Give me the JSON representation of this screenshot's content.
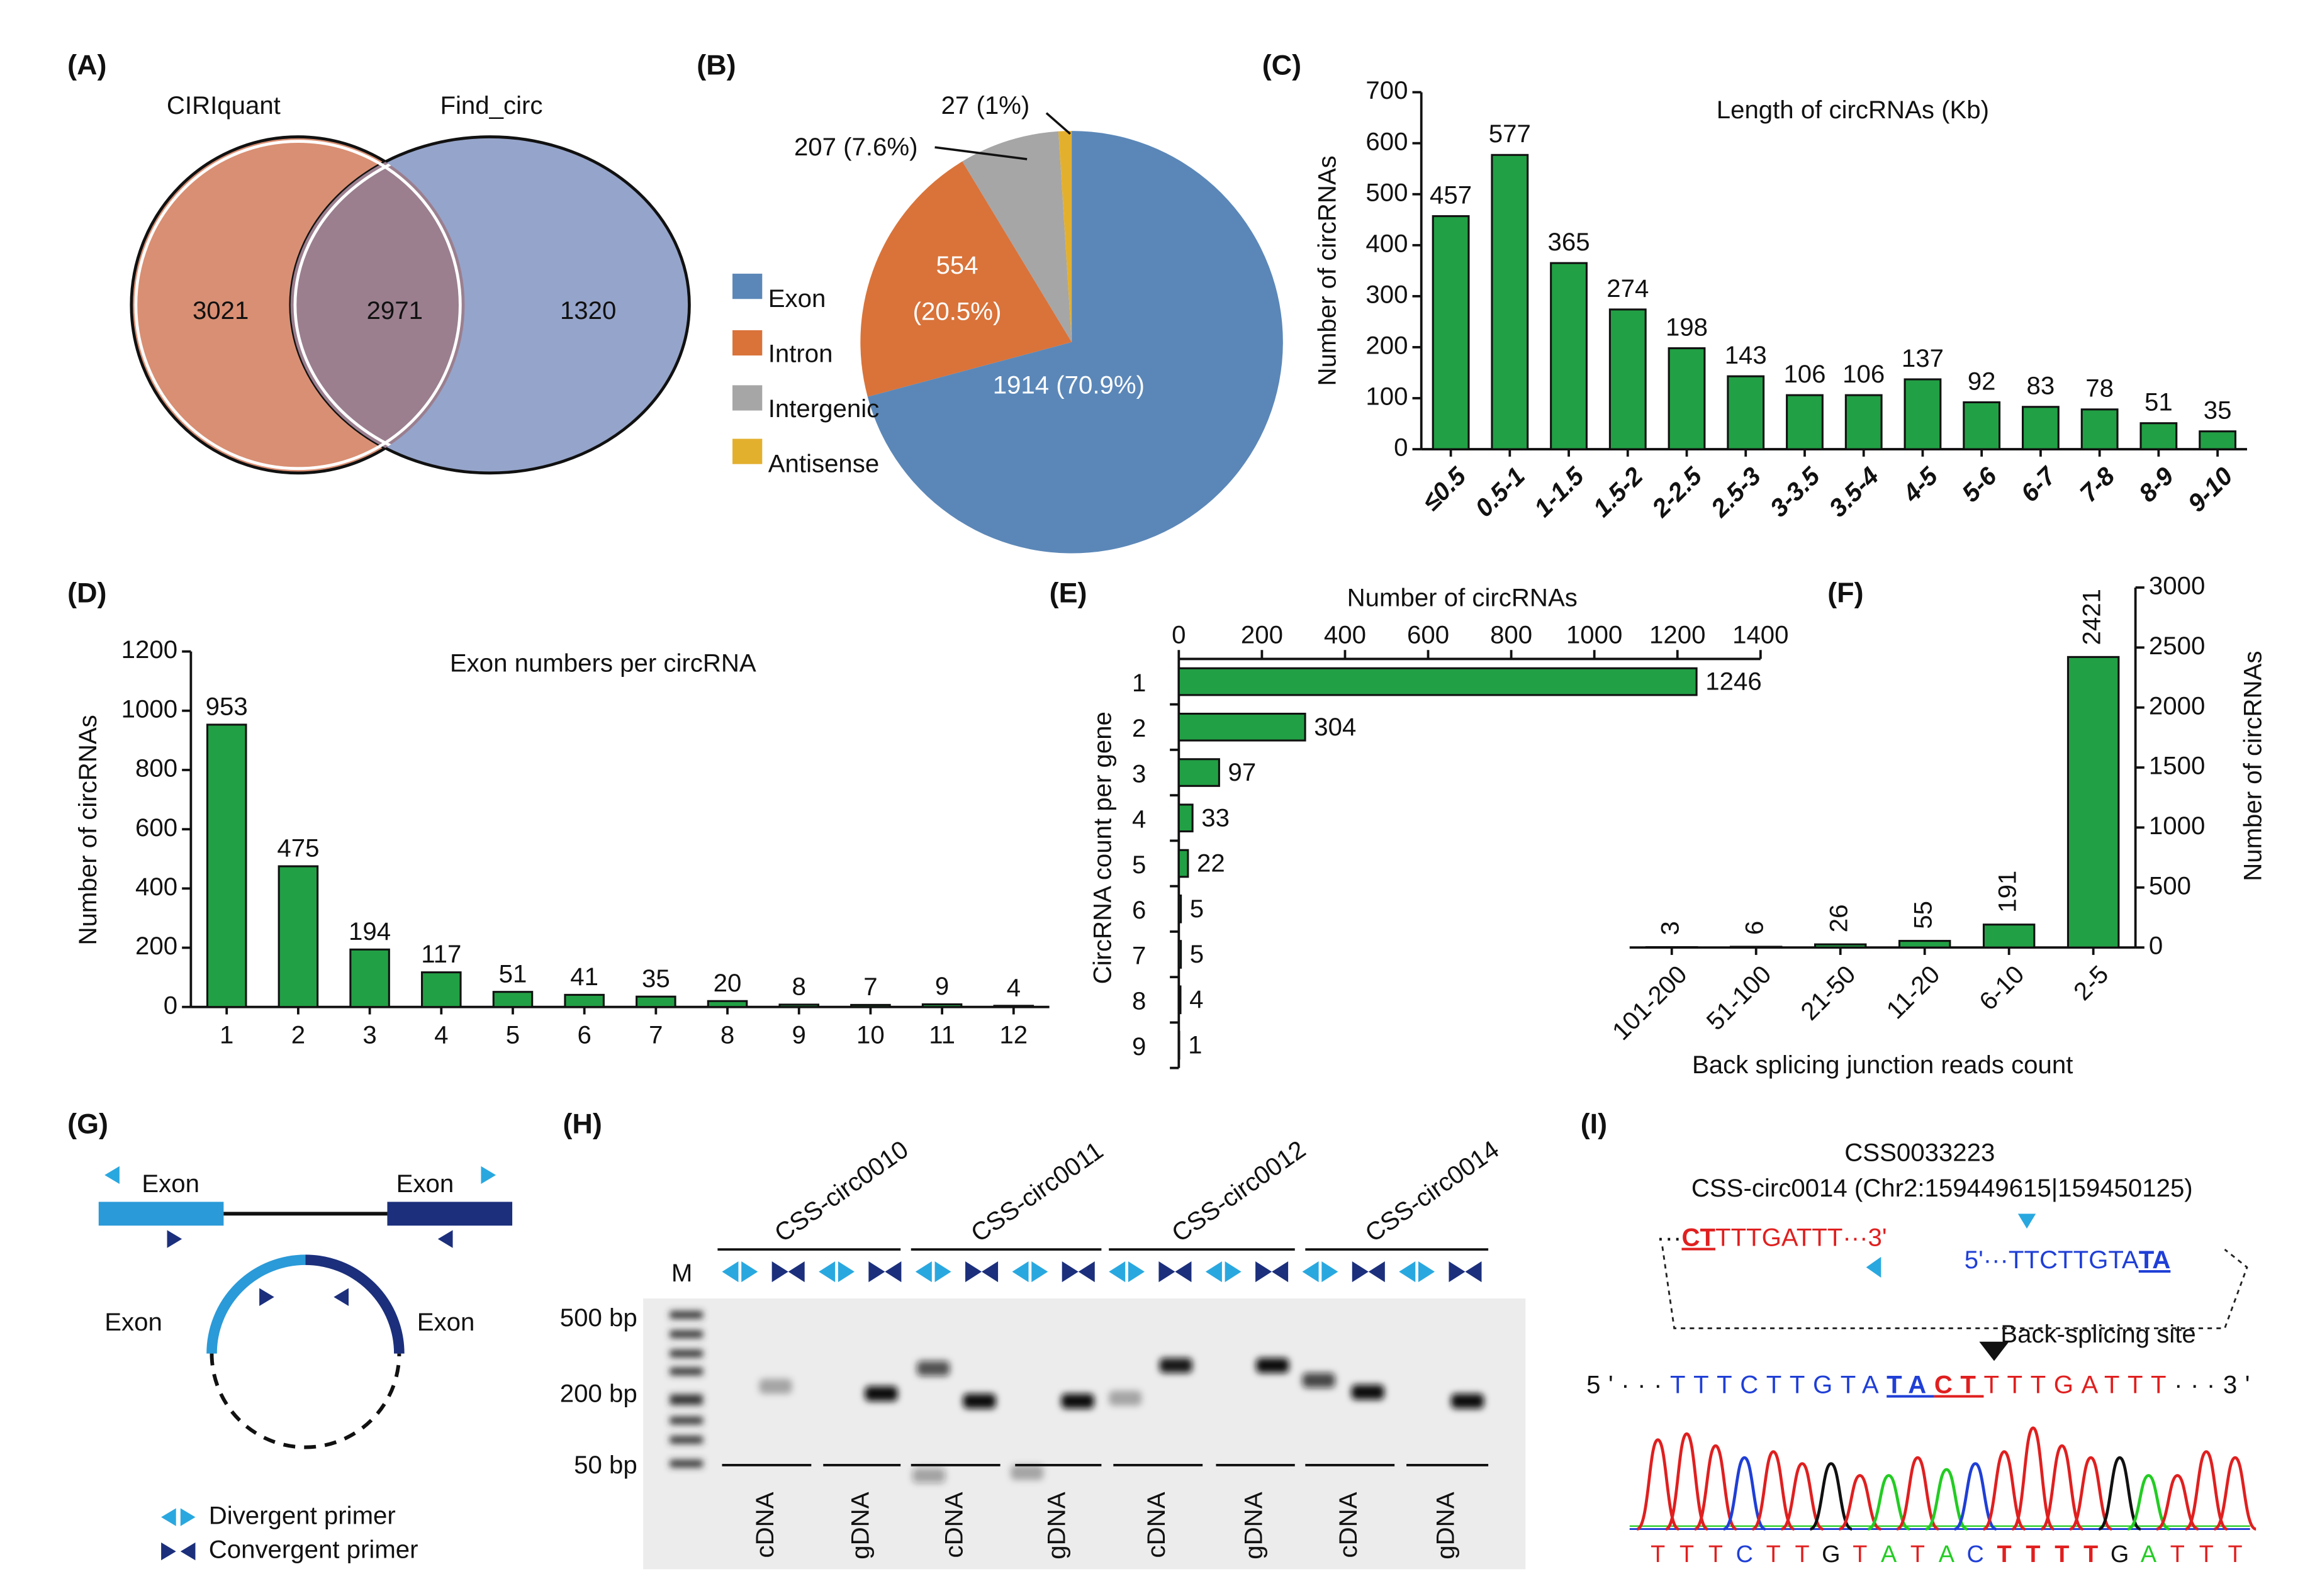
{
  "chart_data": [
    {
      "type": "venn",
      "label": "(A)",
      "sets": [
        {
          "name": "CIRIquant",
          "color": "#d98f73"
        },
        {
          "name": "Find_circ",
          "color": "#95a4ca"
        }
      ],
      "overlap_color": "#9b7f8f",
      "values": [
        3021,
        2971,
        1320
      ]
    },
    {
      "type": "pie",
      "label": "(B)",
      "categories": [
        "Exon",
        "Intron",
        "Intergenic",
        "Antisense"
      ],
      "values": [
        1914,
        554,
        207,
        27
      ],
      "value_labels": [
        "1914 (70.9%)",
        "554 (20.5%)",
        "207 (7.6%)",
        "27 (1%)"
      ],
      "colors": [
        "#5b87b8",
        "#d9733a",
        "#a6a6a6",
        "#e3b02e"
      ]
    },
    {
      "type": "bar",
      "label": "(C)",
      "title": "Length of circRNAs (Kb)",
      "y_label": "Number of circRNAs",
      "categories": [
        "≤0.5",
        "0.5-1",
        "1-1.5",
        "1.5-2",
        "2-2.5",
        "2.5-3",
        "3-3.5",
        "3.5-4",
        "4-5",
        "5-6",
        "6-7",
        "7-8",
        "8-9",
        "9-10"
      ],
      "values": [
        457,
        577,
        365,
        274,
        198,
        143,
        106,
        106,
        137,
        92,
        83,
        78,
        51,
        35
      ],
      "color": "#22a045",
      "ylim": [
        0,
        700
      ],
      "yticks": [
        0,
        100,
        200,
        300,
        400,
        500,
        600,
        700
      ]
    },
    {
      "type": "bar",
      "label": "(D)",
      "title": "Exon numbers per circRNA",
      "y_label": "Number of circRNAs",
      "categories": [
        "1",
        "2",
        "3",
        "4",
        "5",
        "6",
        "7",
        "8",
        "9",
        "10",
        "11",
        "12"
      ],
      "values": [
        953,
        475,
        194,
        117,
        51,
        41,
        35,
        20,
        8,
        7,
        9,
        4
      ],
      "color": "#22a045",
      "ylim": [
        0,
        1200
      ],
      "yticks": [
        0,
        200,
        400,
        600,
        800,
        1000,
        1200
      ]
    },
    {
      "type": "bar",
      "orientation": "horizontal",
      "label": "(E)",
      "x_label": "Number of circRNAs",
      "y_label": "CircRNA count per gene",
      "categories": [
        "1",
        "2",
        "3",
        "4",
        "5",
        "6",
        "7",
        "8",
        "9"
      ],
      "values": [
        1246,
        304,
        97,
        33,
        22,
        5,
        5,
        4,
        1
      ],
      "color": "#22a045",
      "xlim": [
        0,
        1400
      ],
      "xticks": [
        0,
        200,
        400,
        600,
        800,
        1000,
        1200,
        1400
      ]
    },
    {
      "type": "bar",
      "label": "(F)",
      "x_label": "Back splicing junction reads count",
      "y_label": "Number of circRNAs",
      "yaxis": "right",
      "categories": [
        "101-200",
        "51-100",
        "21-50",
        "11-20",
        "6-10",
        "2-5"
      ],
      "values": [
        3,
        6,
        26,
        55,
        191,
        2421
      ],
      "color": "#22a045",
      "ylim": [
        0,
        3000
      ],
      "yticks": [
        0,
        500,
        1000,
        1500,
        2000,
        2500,
        3000
      ]
    }
  ],
  "diagram": {
    "label": "(G)",
    "exon_labels": [
      "Exon",
      "Exon",
      "Exon",
      "Exon"
    ],
    "legend": [
      "Divergent primer",
      "Convergent primer"
    ]
  },
  "gel": {
    "label": "(H)",
    "samples": [
      "CSS-circ0010",
      "CSS-circ0011",
      "CSS-circ0012",
      "CSS-circ0014"
    ],
    "marker": "M",
    "sizes": [
      "500 bp",
      "200 bp",
      "50 bp"
    ],
    "lanes": [
      "cDNA",
      "gDNA",
      "cDNA",
      "gDNA",
      "cDNA",
      "gDNA",
      "cDNA",
      "gDNA"
    ]
  },
  "sequencing": {
    "label": "(I)",
    "id": "CSS0033223",
    "name": "CSS-circ0014 (Chr2:159449615|159450125)",
    "left_fragment": [
      "···",
      "CT",
      "TTTGATTT···3'"
    ],
    "right_fragment": [
      "5'···TTCTTGTA",
      "TA"
    ],
    "site": "Back-splicing site",
    "junction": [
      "5'···",
      "TTTCTTGTA",
      "TA",
      "CT",
      "TTTGATTT",
      "···3'"
    ],
    "base_calls": [
      [
        "T",
        "T",
        "T",
        "C",
        "T",
        "T",
        "G",
        "T",
        "A",
        "T",
        "A",
        "C"
      ],
      [
        "T",
        "T",
        "T",
        "T"
      ],
      [
        "G",
        "A",
        "T",
        "T",
        "T"
      ]
    ],
    "base_colors": {
      "A": "#22cc22",
      "C": "#1f3fd6",
      "G": "#111111",
      "T": "#e01f1f"
    }
  }
}
